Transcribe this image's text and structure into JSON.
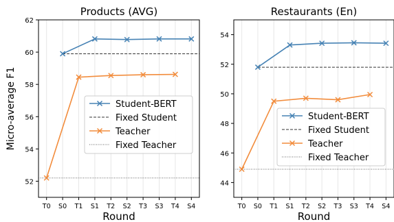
{
  "chart_data": [
    {
      "type": "line",
      "title": "Products (AVG)",
      "xlabel": "Round",
      "ylabel": "Micro-average F1",
      "x": [
        "T0",
        "S0",
        "T1",
        "S1",
        "T2",
        "S2",
        "T3",
        "S3",
        "T4",
        "S4"
      ],
      "ylim": [
        51,
        62
      ],
      "yticks": [
        52,
        54,
        56,
        58,
        60,
        62
      ],
      "grid": true,
      "legend_position": "center-right",
      "series": [
        {
          "name": "Student-BERT",
          "color": "#4682b4",
          "marker": "x",
          "points": [
            [
              "S0",
              59.9
            ],
            [
              "S1",
              60.82
            ],
            [
              "S2",
              60.78
            ],
            [
              "S3",
              60.82
            ],
            [
              "S4",
              60.82
            ]
          ]
        },
        {
          "name": "Fixed Student",
          "color": "#333333",
          "style": "dashed",
          "value": 59.9,
          "from": "S0",
          "to": "S4"
        },
        {
          "name": "Teacher",
          "color": "#f28c3c",
          "marker": "x",
          "points": [
            [
              "T0",
              52.2
            ],
            [
              "T1",
              58.45
            ],
            [
              "T2",
              58.55
            ],
            [
              "T3",
              58.6
            ],
            [
              "T4",
              58.62
            ]
          ]
        },
        {
          "name": "Fixed Teacher",
          "color": "#666666",
          "style": "dotted",
          "value": 52.2,
          "from": "T0",
          "to": "S4"
        }
      ]
    },
    {
      "type": "line",
      "title": "Restaurants (En)",
      "xlabel": "Round",
      "ylabel": "",
      "x": [
        "T0",
        "S0",
        "T1",
        "S1",
        "T2",
        "S2",
        "T3",
        "S3",
        "T4",
        "S4"
      ],
      "ylim": [
        43,
        55
      ],
      "yticks": [
        44,
        46,
        48,
        50,
        52,
        54
      ],
      "grid": true,
      "legend_position": "center-right",
      "series": [
        {
          "name": "Student-BERT",
          "color": "#4682b4",
          "marker": "x",
          "points": [
            [
              "S0",
              51.8
            ],
            [
              "S1",
              53.3
            ],
            [
              "S2",
              53.42
            ],
            [
              "S3",
              53.45
            ],
            [
              "S4",
              53.42
            ]
          ]
        },
        {
          "name": "Fixed Student",
          "color": "#333333",
          "style": "dashed",
          "value": 51.8,
          "from": "S0",
          "to": "S4"
        },
        {
          "name": "Teacher",
          "color": "#f28c3c",
          "marker": "x",
          "points": [
            [
              "T0",
              44.9
            ],
            [
              "T1",
              49.5
            ],
            [
              "T2",
              49.7
            ],
            [
              "T3",
              49.6
            ],
            [
              "T4",
              49.95
            ]
          ]
        },
        {
          "name": "Fixed Teacher",
          "color": "#666666",
          "style": "dotted",
          "value": 44.9,
          "from": "T0",
          "to": "S4"
        }
      ]
    }
  ]
}
